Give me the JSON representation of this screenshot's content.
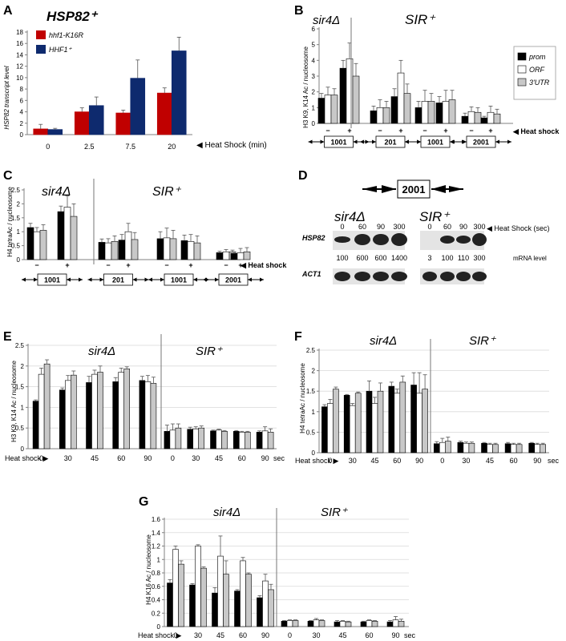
{
  "colors": {
    "prom": "#000000",
    "orf": "#ffffff",
    "utr": "#c8c8c8",
    "k16r": "#c00000",
    "hhf1": "#0e2a6e",
    "axis": "#808080",
    "grid": "#d9d9d9"
  },
  "panels": {
    "A": {
      "label": "A",
      "title": "HSP82⁺",
      "xlabel": "◀ Heat Shock (min)",
      "ylabel": "HSP82 transcript level"
    },
    "B": {
      "label": "B",
      "group1": "sir4Δ",
      "group2": "SIR⁺",
      "ylabel": "H3 K9, K14 Ac / nucleosome",
      "heat_label": "◀ Heat shock"
    },
    "C": {
      "label": "C",
      "group1": "sir4Δ",
      "group2": "SIR⁺",
      "ylabel": "H4 tetraAc / nucleosome",
      "heat_label": "◀ Heat shock"
    },
    "D": {
      "label": "D",
      "construct": "2001",
      "group1": "sir4Δ",
      "group2": "SIR⁺",
      "time_label": "◀ Heat Shock (sec)",
      "times1": [
        "0",
        "60",
        "90",
        "300"
      ],
      "times2": [
        "0",
        "60",
        "90",
        "300"
      ],
      "row1": "HSP82",
      "row2": "ACT1",
      "mrna1": [
        "100",
        "600",
        "600",
        "1400"
      ],
      "mrna2": [
        "3",
        "100",
        "110",
        "300"
      ],
      "mrna_label": "mRNA level"
    },
    "E": {
      "label": "E",
      "group1": "sir4Δ",
      "group2": "SIR⁺",
      "ylabel": "H3 K9, K14 Ac / nucleosome",
      "heat_label": "Heat shock ▶",
      "unit": "sec"
    },
    "F": {
      "label": "F",
      "group1": "sir4Δ",
      "group2": "SIR⁺",
      "ylabel": "H4 tetraAc / nucleosome",
      "heat_label": "Heat shock ▶",
      "unit": "sec"
    },
    "G": {
      "label": "G",
      "group1": "sir4Δ",
      "group2": "SIR⁺",
      "ylabel": "H4 K16 Ac / nucleosome",
      "heat_label": "Heat shock ▶",
      "unit": "sec"
    }
  },
  "chart_data": [
    {
      "panel": "A",
      "type": "bar",
      "categories": [
        "0",
        "2.5",
        "7.5",
        "20"
      ],
      "series": [
        {
          "name": "hhf1-K16R",
          "color": "#c00000",
          "values": [
            1.0,
            4.0,
            3.8,
            7.3
          ],
          "errors": [
            0.8,
            0.7,
            0.5,
            0.9
          ]
        },
        {
          "name": "HHF1⁺",
          "color": "#0e2a6e",
          "values": [
            0.9,
            5.1,
            9.9,
            14.7
          ],
          "errors": [
            0.2,
            1.5,
            3.2,
            2.4
          ]
        }
      ],
      "ylim": [
        0,
        18
      ],
      "yticks": [
        0,
        2,
        4,
        6,
        8,
        10,
        12,
        14,
        16,
        18
      ],
      "legend": "top-left",
      "grid": false
    },
    {
      "panel": "B",
      "type": "bar",
      "heat": [
        "−",
        "+",
        "−",
        "+",
        "−",
        "+",
        "−",
        "+"
      ],
      "constructs": [
        "1001",
        "201",
        "1001",
        "2001"
      ],
      "series": [
        {
          "name": "prom",
          "values": [
            1.6,
            3.5,
            0.8,
            1.7,
            1.0,
            1.3,
            0.45,
            0.35
          ],
          "errors": [
            0.3,
            0.5,
            0.3,
            0.5,
            0.4,
            0.4,
            0.2,
            0.1
          ]
        },
        {
          "name": "ORF",
          "values": [
            1.8,
            4.1,
            1.0,
            3.2,
            1.4,
            1.4,
            0.75,
            0.7
          ],
          "errors": [
            0.5,
            1.0,
            0.5,
            0.8,
            0.7,
            0.7,
            0.3,
            0.4
          ]
        },
        {
          "name": "3'UTR",
          "values": [
            1.8,
            3.0,
            1.0,
            1.9,
            1.4,
            1.5,
            0.7,
            0.6
          ],
          "errors": [
            0.4,
            0.8,
            0.4,
            0.6,
            0.5,
            0.6,
            0.3,
            0.3
          ]
        }
      ],
      "ylim": [
        0,
        6
      ],
      "yticks": [
        0,
        1,
        2,
        3,
        4,
        5,
        6
      ],
      "legend": "right",
      "grid": false
    },
    {
      "panel": "C",
      "type": "bar",
      "heat": [
        "−",
        "+",
        "−",
        "+",
        "−",
        "+",
        "−",
        "+"
      ],
      "constructs": [
        "1001",
        "201",
        "1001",
        "2001"
      ],
      "series": [
        {
          "name": "prom",
          "values": [
            1.15,
            1.72,
            0.62,
            0.7,
            0.75,
            0.68,
            0.25,
            0.22
          ],
          "errors": [
            0.15,
            0.2,
            0.12,
            0.2,
            0.25,
            0.2,
            0.05,
            0.05
          ]
        },
        {
          "name": "ORF",
          "values": [
            1.0,
            1.88,
            0.6,
            1.0,
            0.78,
            0.65,
            0.28,
            0.25
          ],
          "errors": [
            0.15,
            0.4,
            0.15,
            0.3,
            0.35,
            0.25,
            0.08,
            0.15
          ]
        },
        {
          "name": "3'UTR",
          "values": [
            1.05,
            1.55,
            0.65,
            0.72,
            0.75,
            0.6,
            0.28,
            0.28
          ],
          "errors": [
            0.2,
            0.45,
            0.2,
            0.25,
            0.3,
            0.25,
            0.06,
            0.15
          ]
        }
      ],
      "ylim": [
        0,
        2.5
      ],
      "yticks": [
        0,
        0.5,
        1,
        1.5,
        2,
        2.5
      ],
      "grid": false
    },
    {
      "panel": "E",
      "type": "bar",
      "categories": [
        "0",
        "30",
        "45",
        "60",
        "90",
        "0",
        "30",
        "45",
        "60",
        "90"
      ],
      "series": [
        {
          "name": "prom",
          "values": [
            1.15,
            1.42,
            1.6,
            1.62,
            1.65,
            0.42,
            0.47,
            0.43,
            0.42,
            0.4
          ],
          "errors": [
            0.03,
            0.05,
            0.15,
            0.1,
            0.1,
            0.15,
            0.05,
            0.02,
            0.02,
            0.03
          ]
        },
        {
          "name": "ORF",
          "values": [
            1.8,
            1.65,
            1.8,
            1.85,
            1.62,
            0.45,
            0.48,
            0.45,
            0.4,
            0.43
          ],
          "errors": [
            0.15,
            0.12,
            0.1,
            0.1,
            0.15,
            0.15,
            0.05,
            0.02,
            0.02,
            0.1
          ]
        },
        {
          "name": "3'UTR",
          "values": [
            2.05,
            1.78,
            1.85,
            1.93,
            1.58,
            0.5,
            0.5,
            0.42,
            0.4,
            0.4
          ],
          "errors": [
            0.1,
            0.1,
            0.15,
            0.05,
            0.15,
            0.1,
            0.05,
            0.02,
            0.02,
            0.08
          ]
        }
      ],
      "ylim": [
        0,
        2.5
      ],
      "yticks": [
        0,
        0.5,
        1,
        1.5,
        2,
        2.5
      ],
      "grid": true
    },
    {
      "panel": "F",
      "type": "bar",
      "categories": [
        "0",
        "30",
        "45",
        "60",
        "90",
        "0",
        "30",
        "45",
        "60",
        "90"
      ],
      "series": [
        {
          "name": "prom",
          "values": [
            1.12,
            1.4,
            1.5,
            1.62,
            1.65,
            0.22,
            0.25,
            0.23,
            0.22,
            0.23
          ],
          "errors": [
            0.05,
            0.02,
            0.25,
            0.1,
            0.3,
            0.05,
            0.03,
            0.02,
            0.03,
            0.02
          ]
        },
        {
          "name": "ORF",
          "values": [
            1.2,
            1.15,
            1.2,
            1.45,
            1.45,
            0.25,
            0.23,
            0.2,
            0.2,
            0.2
          ],
          "errors": [
            0.1,
            0.05,
            0.15,
            0.1,
            0.5,
            0.1,
            0.03,
            0.03,
            0.03,
            0.03
          ]
        },
        {
          "name": "3'UTR",
          "values": [
            1.55,
            1.45,
            1.5,
            1.72,
            1.55,
            0.28,
            0.23,
            0.2,
            0.2,
            0.2
          ],
          "errors": [
            0.05,
            0.03,
            0.2,
            0.15,
            0.35,
            0.1,
            0.03,
            0.03,
            0.03,
            0.03
          ]
        }
      ],
      "ylim": [
        0,
        2.5
      ],
      "yticks": [
        0,
        0.5,
        1,
        1.5,
        2,
        2.5
      ],
      "grid": true
    },
    {
      "panel": "G",
      "type": "bar",
      "categories": [
        "0",
        "30",
        "45",
        "60",
        "90",
        "0",
        "30",
        "45",
        "60",
        "90"
      ],
      "series": [
        {
          "name": "prom",
          "values": [
            0.65,
            0.62,
            0.5,
            0.53,
            0.43,
            0.08,
            0.08,
            0.07,
            0.07,
            0.07
          ],
          "errors": [
            0.05,
            0.02,
            0.08,
            0.02,
            0.03,
            0.01,
            0.01,
            0.02,
            0.01,
            0.02
          ]
        },
        {
          "name": "ORF",
          "values": [
            1.15,
            1.2,
            1.05,
            0.98,
            0.68,
            0.09,
            0.1,
            0.08,
            0.09,
            0.1
          ],
          "errors": [
            0.05,
            0.02,
            0.3,
            0.05,
            0.1,
            0.01,
            0.02,
            0.01,
            0.01,
            0.05
          ]
        },
        {
          "name": "3'UTR",
          "values": [
            0.93,
            0.87,
            0.78,
            0.78,
            0.55,
            0.09,
            0.09,
            0.07,
            0.08,
            0.08
          ],
          "errors": [
            0.05,
            0.02,
            0.2,
            0.02,
            0.08,
            0.01,
            0.01,
            0.01,
            0.01,
            0.03
          ]
        }
      ],
      "ylim": [
        0,
        1.6
      ],
      "yticks": [
        0,
        0.2,
        0.4,
        0.6,
        0.8,
        1,
        1.2,
        1.4,
        1.6
      ],
      "grid": true
    }
  ]
}
